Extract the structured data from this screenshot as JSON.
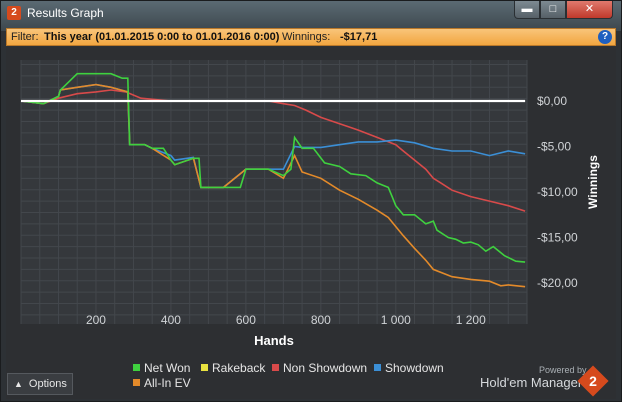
{
  "window": {
    "title": "Results Graph",
    "app_icon": "2"
  },
  "filter": {
    "label": "Filter:",
    "value": "This year (01.01.2015 0:00 to 01.01.2016 0:00)",
    "winnings_label": "Winnings:",
    "winnings_value": "-$17,71"
  },
  "options": {
    "label": "Options"
  },
  "brand": {
    "powered_by": "Powered by",
    "name": "Hold'em Manager",
    "logo": "2"
  },
  "colors": {
    "net_won": "#3fd13f",
    "rakeback": "#e9e240",
    "non_showdown": "#d84a4a",
    "showdown": "#3b8fd6",
    "all_in_ev": "#e38a2a",
    "zero_line": "#ffffff"
  },
  "chart_data": {
    "type": "line",
    "xlabel": "Hands",
    "ylabel": "Winnings",
    "xlim": [
      0,
      1350
    ],
    "ylim": [
      -24.5,
      4.5
    ],
    "x_ticks": [
      200,
      400,
      600,
      800,
      1000,
      1200
    ],
    "x_tick_labels": [
      "200",
      "400",
      "600",
      "800",
      "1 000",
      "1 200"
    ],
    "y_ticks": [
      0,
      -5,
      -10,
      -15,
      -20
    ],
    "y_tick_labels": [
      "$0,00",
      "-$5,00",
      "-$10,00",
      "-$15,00",
      "-$20,00"
    ],
    "legend_position": "bottom",
    "grid": true,
    "series": [
      {
        "name": "Net Won",
        "key": "net_won",
        "x": [
          0,
          60,
          100,
          105,
          150,
          200,
          240,
          270,
          285,
          290,
          330,
          350,
          380,
          400,
          410,
          460,
          475,
          480,
          510,
          540,
          570,
          585,
          600,
          660,
          700,
          720,
          730,
          750,
          780,
          810,
          850,
          880,
          920,
          950,
          980,
          990,
          1000,
          1020,
          1050,
          1080,
          1100,
          1110,
          1140,
          1160,
          1180,
          1200,
          1220,
          1240,
          1260,
          1290,
          1320,
          1345
        ],
        "y": [
          0,
          -0.3,
          0.5,
          1.2,
          3,
          3,
          3,
          2.5,
          2.5,
          -4.8,
          -4.8,
          -5.2,
          -5.2,
          -6.5,
          -7,
          -6.3,
          -6.3,
          -9.5,
          -9.5,
          -9.5,
          -9.5,
          -9.5,
          -7.5,
          -7.5,
          -8.2,
          -7.5,
          -4,
          -5.2,
          -5.2,
          -6.8,
          -7.2,
          -8,
          -8.2,
          -9,
          -9.5,
          -10.5,
          -11.5,
          -12.5,
          -12.5,
          -13.5,
          -13.2,
          -14.2,
          -15,
          -15.2,
          -15.6,
          -15.5,
          -15.8,
          -16.5,
          -16,
          -17,
          -17.6,
          -17.7
        ]
      },
      {
        "name": "Rakeback",
        "key": "rakeback",
        "x": [
          0,
          1345
        ],
        "y": [
          0,
          0
        ]
      },
      {
        "name": "Non Showdown",
        "key": "non_showdown",
        "x": [
          0,
          60,
          100,
          150,
          200,
          240,
          280,
          320,
          400,
          500,
          600,
          660,
          700,
          730,
          760,
          800,
          850,
          900,
          950,
          1000,
          1020,
          1050,
          1080,
          1100,
          1120,
          1150,
          1200,
          1250,
          1300,
          1345
        ],
        "y": [
          0,
          -0.3,
          0.3,
          0.8,
          1,
          1.2,
          1,
          0.3,
          0,
          0,
          0,
          0,
          -0.3,
          -0.5,
          -1,
          -1.8,
          -2.5,
          -3.2,
          -4,
          -4.8,
          -5.5,
          -6.5,
          -7.5,
          -8.5,
          -9,
          -9.8,
          -10.5,
          -11,
          -11.5,
          -12.1
        ]
      },
      {
        "name": "Showdown",
        "key": "showdown",
        "x": [
          0,
          60,
          100,
          105,
          150,
          200,
          240,
          285,
          290,
          330,
          350,
          400,
          410,
          460,
          480,
          540,
          600,
          660,
          700,
          730,
          750,
          800,
          850,
          900,
          950,
          1000,
          1050,
          1100,
          1150,
          1200,
          1250,
          1300,
          1345
        ],
        "y": [
          0,
          -0.3,
          0.5,
          1.2,
          1.5,
          1.8,
          1.5,
          1,
          -4.8,
          -4.8,
          -5.2,
          -6,
          -6.5,
          -6.2,
          -9.5,
          -9.5,
          -7.5,
          -7.5,
          -7.5,
          -5,
          -5.1,
          -5.1,
          -4.8,
          -4.5,
          -4.5,
          -4.3,
          -4.6,
          -5.2,
          -5.5,
          -5.5,
          -6,
          -5.5,
          -5.8
        ]
      },
      {
        "name": "All-In EV",
        "key": "all_in_ev",
        "x": [
          0,
          60,
          100,
          105,
          150,
          200,
          240,
          285,
          290,
          330,
          350,
          400,
          410,
          460,
          480,
          540,
          600,
          660,
          700,
          730,
          750,
          800,
          850,
          900,
          950,
          980,
          1000,
          1020,
          1050,
          1080,
          1100,
          1150,
          1200,
          1250,
          1280,
          1300,
          1345
        ],
        "y": [
          0,
          -0.3,
          0.5,
          1.2,
          1.5,
          1.8,
          1.5,
          1,
          -4.8,
          -4.8,
          -5.2,
          -6.5,
          -7,
          -6.3,
          -9.5,
          -9.5,
          -7.5,
          -7.5,
          -8.5,
          -6,
          -7.8,
          -8.5,
          -9.8,
          -10.8,
          -12,
          -12.8,
          -13.8,
          -14.8,
          -16.2,
          -17.5,
          -18.5,
          -19.3,
          -19.6,
          -19.8,
          -20.3,
          -20.2,
          -20.4
        ]
      }
    ]
  }
}
